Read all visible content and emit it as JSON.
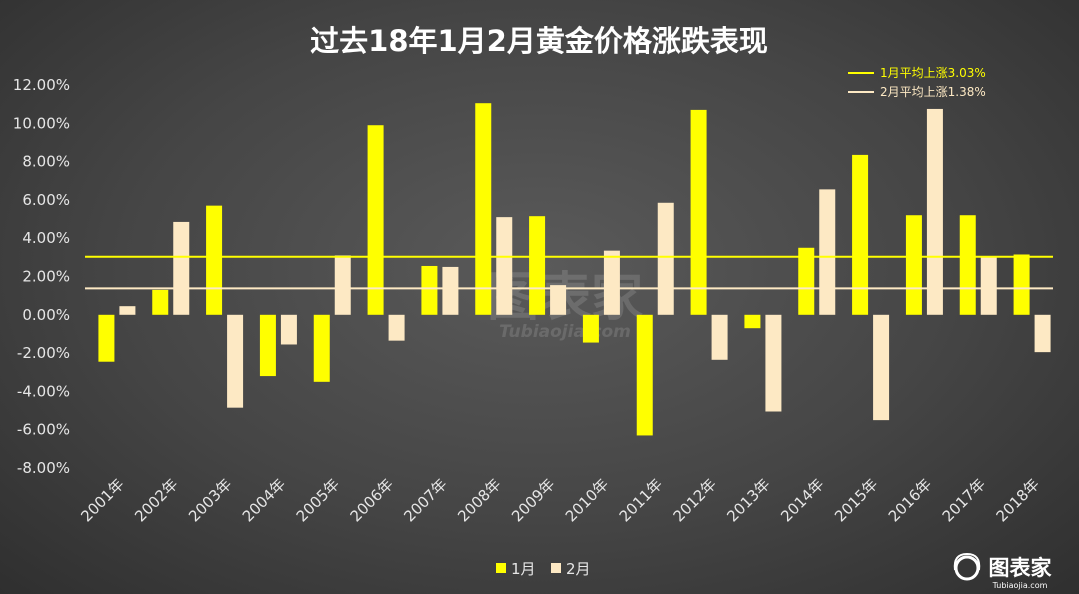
{
  "chart_data": {
    "type": "bar",
    "title": "过去18年1月2月黄金价格涨跌表现",
    "categories": [
      "2001年",
      "2002年",
      "2003年",
      "2004年",
      "2005年",
      "2006年",
      "2007年",
      "2008年",
      "2009年",
      "2010年",
      "2011年",
      "2012年",
      "2013年",
      "2014年",
      "2015年",
      "2016年",
      "2017年",
      "2018年"
    ],
    "series": [
      {
        "name": "1月",
        "color": "#ffff00",
        "values": [
          -2.45,
          1.3,
          5.7,
          -3.2,
          -3.5,
          9.9,
          2.55,
          11.05,
          5.15,
          -1.45,
          -6.3,
          10.7,
          -0.7,
          3.5,
          8.35,
          5.2,
          5.2,
          3.15
        ]
      },
      {
        "name": "2月",
        "color": "#fde9c4",
        "values": [
          0.45,
          4.85,
          -4.85,
          -1.55,
          3.1,
          -1.35,
          2.5,
          5.1,
          1.55,
          3.35,
          5.85,
          -2.35,
          -5.05,
          6.55,
          -5.5,
          10.75,
          3.0,
          -1.95
        ]
      }
    ],
    "reference_lines": [
      {
        "label": "1月平均上涨3.03%",
        "value": 3.03,
        "color": "#ffff00"
      },
      {
        "label": "2月平均上涨1.38%",
        "value": 1.38,
        "color": "#fde9c4"
      }
    ],
    "ylim": [
      -8,
      12
    ],
    "yticks": [
      "-8.00%",
      "-6.00%",
      "-4.00%",
      "-2.00%",
      "0.00%",
      "2.00%",
      "4.00%",
      "6.00%",
      "8.00%",
      "10.00%",
      "12.00%"
    ],
    "xlabel": "",
    "ylabel": "",
    "grid": false,
    "legend_position": "bottom",
    "reference_legend_position": "top-right"
  },
  "watermark": {
    "brand_text": "图表家",
    "domain_text": "Tubiaojia.com",
    "corner_text": "图表家",
    "corner_domain": "Tubiaojia.com"
  }
}
